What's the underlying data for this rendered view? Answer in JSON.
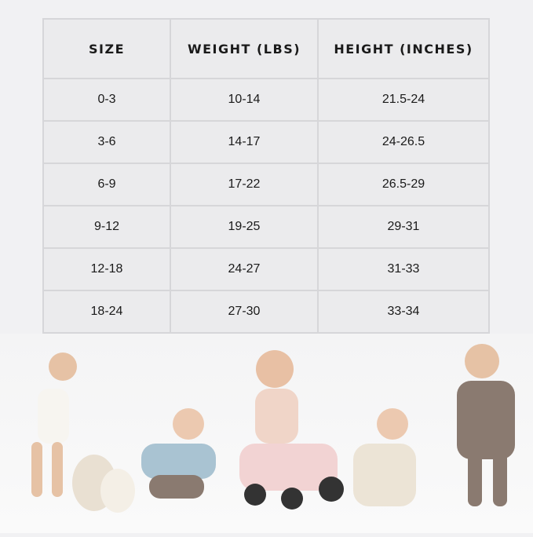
{
  "size_chart": {
    "headers": [
      "SIZE",
      "WEIGHT (LBS)",
      "HEIGHT (INCHES)"
    ],
    "rows": [
      [
        "0-3",
        "10-14",
        "21.5-24"
      ],
      [
        "3-6",
        "14-17",
        "24-26.5"
      ],
      [
        "6-9",
        "17-22",
        "26.5-29"
      ],
      [
        "9-12",
        "19-25",
        "29-31"
      ],
      [
        "12-18",
        "24-27",
        "31-33"
      ],
      [
        "18-24",
        "27-30",
        "33-34"
      ]
    ]
  },
  "photo": {
    "subject": "babies-wearing-outfits",
    "colors": {
      "white": "#f7f5f0",
      "blue": "#a9c3d2",
      "pink": "#f0d5c8",
      "cream": "#ece4d6",
      "brown": "#8a7a70"
    }
  }
}
